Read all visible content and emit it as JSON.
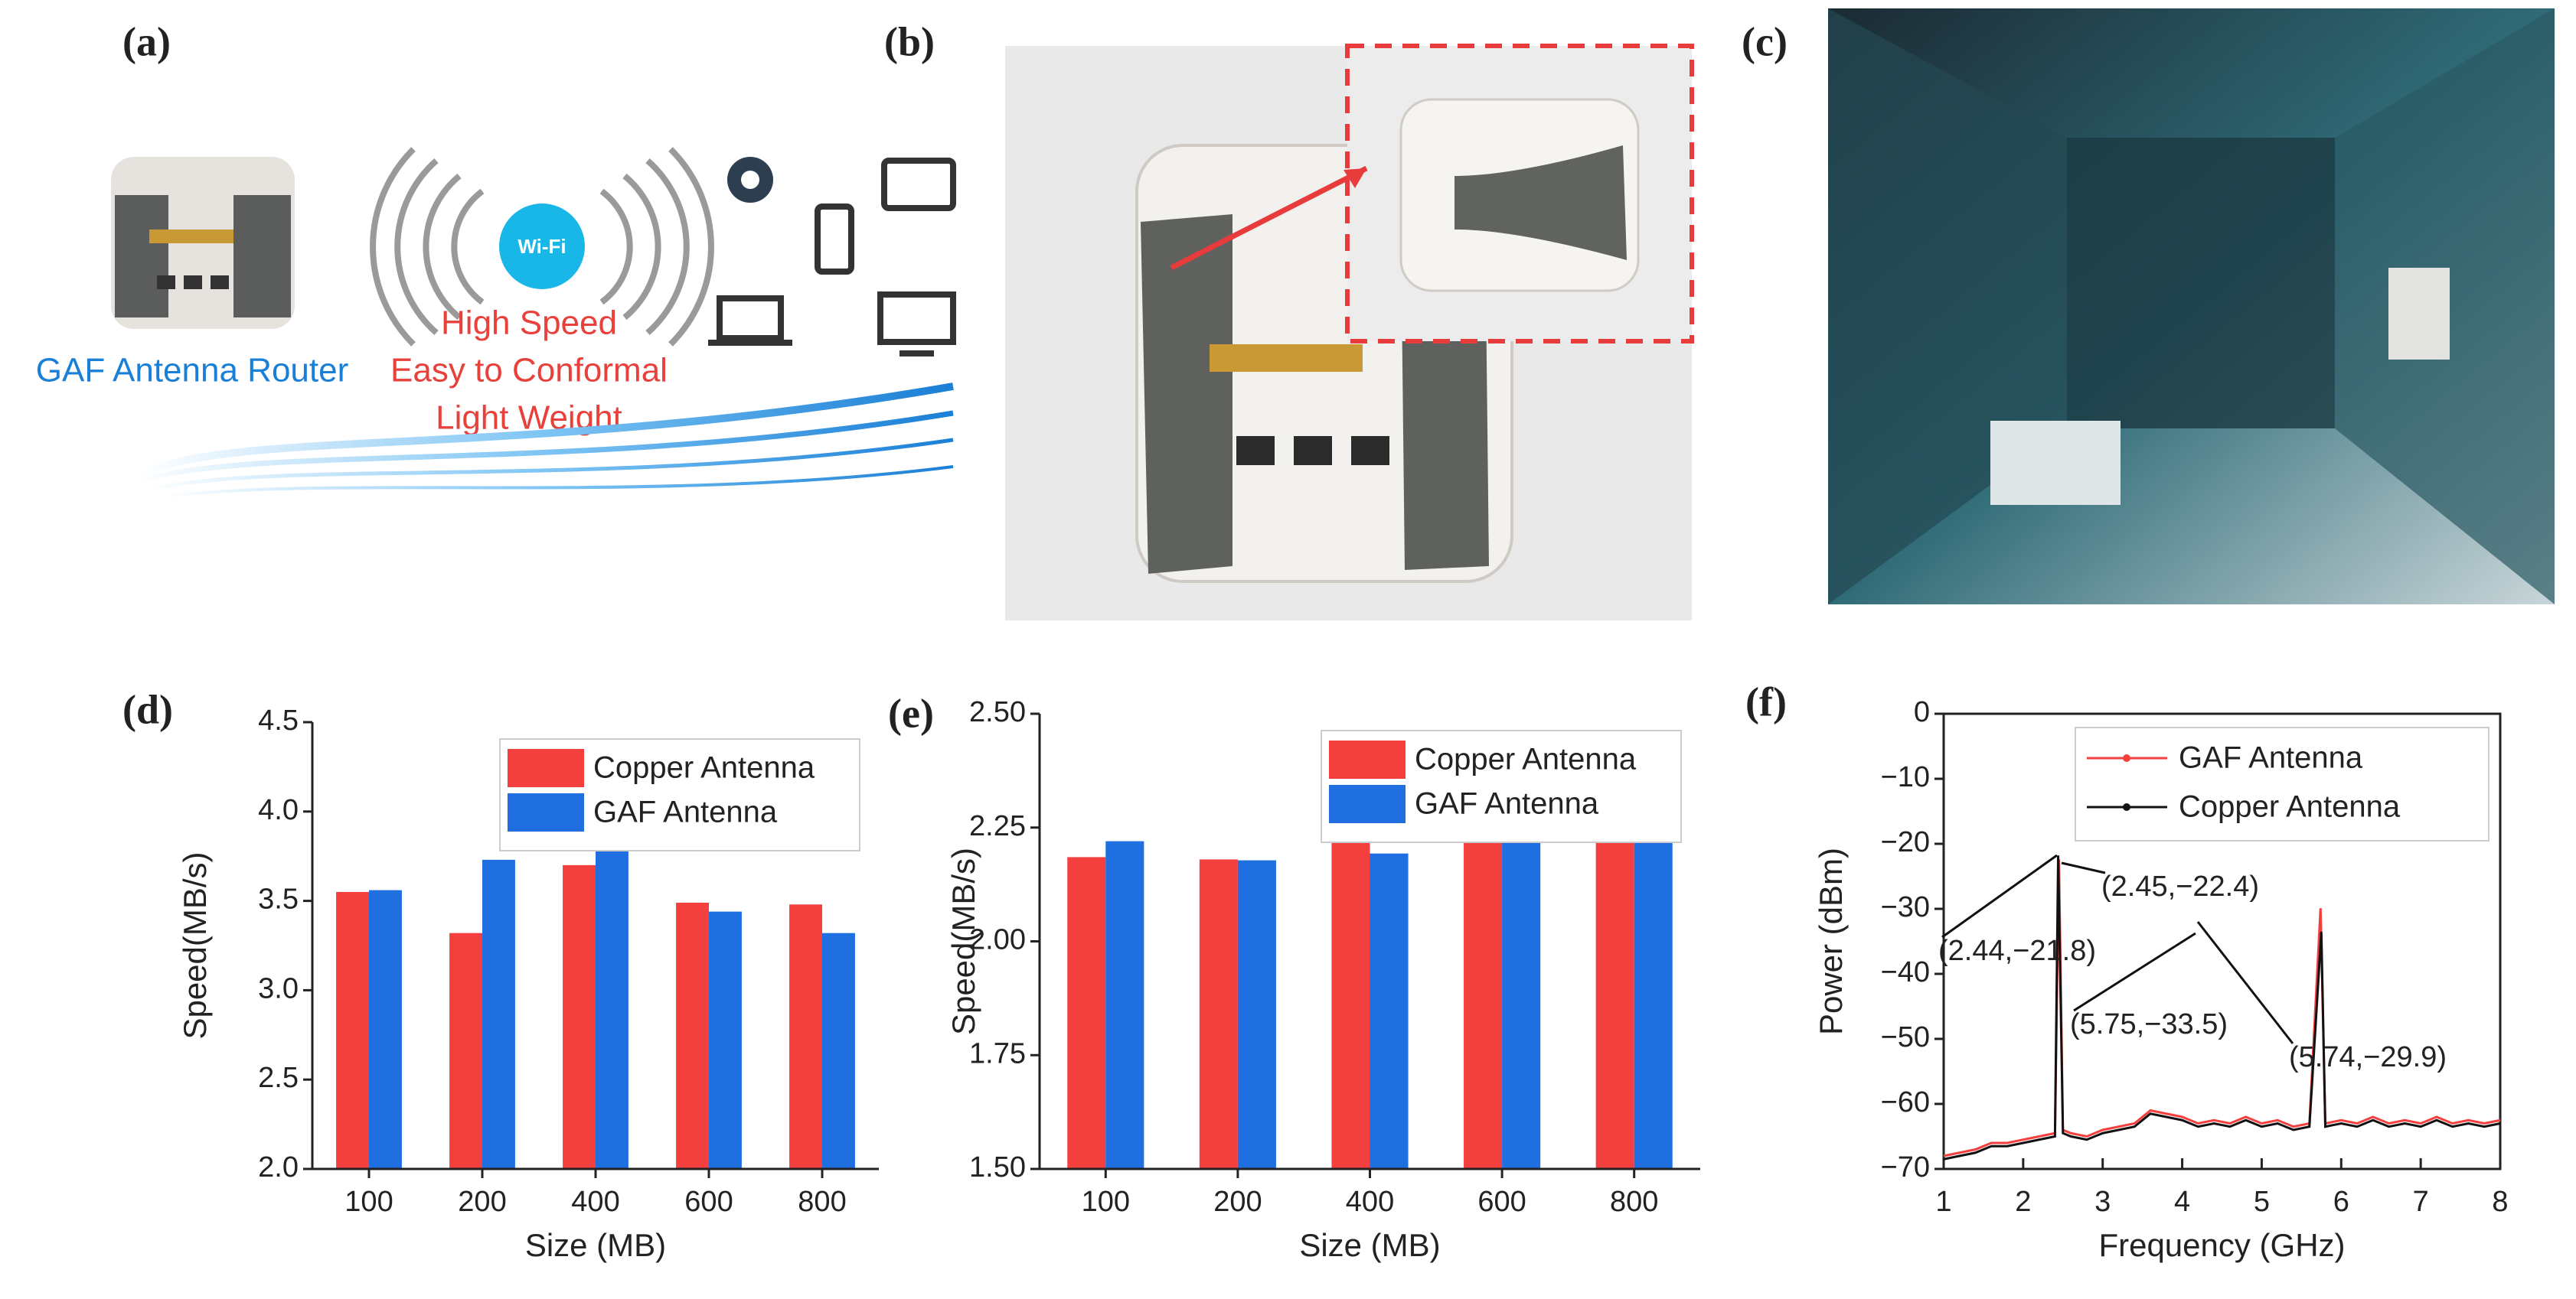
{
  "panels": {
    "a": {
      "label": "(a)",
      "router": "GAF Antenna Router",
      "wifi": "Wi-Fi",
      "features": [
        "High Speed",
        "Easy to Conformal",
        "Light Weight"
      ]
    },
    "b": {
      "label": "(b)"
    },
    "c": {
      "label": "(c)"
    },
    "d": {
      "label": "(d)"
    },
    "e": {
      "label": "(e)"
    },
    "f": {
      "label": "(f)"
    }
  },
  "chart_data": [
    {
      "type": "bar",
      "xlabel": "Size (MB)",
      "ylabel": "Speed(MB/s)",
      "categories": [
        "100",
        "200",
        "400",
        "600",
        "800"
      ],
      "series": [
        {
          "name": "Copper Antenna",
          "color": "#f43f3f",
          "values": [
            3.55,
            3.32,
            3.7,
            3.49,
            3.48
          ]
        },
        {
          "name": "GAF Antenna",
          "color": "#1f6fe0",
          "values": [
            3.56,
            3.73,
            3.79,
            3.44,
            3.32
          ]
        }
      ],
      "ylim": [
        2.0,
        4.5
      ],
      "yticks": [
        {
          "value": 2.0,
          "label": "2.0"
        },
        {
          "value": 2.5,
          "label": "2.5"
        },
        {
          "value": 3.0,
          "label": "3.0"
        },
        {
          "value": 3.5,
          "label": "3.5"
        },
        {
          "value": 4.0,
          "label": "4.0"
        },
        {
          "value": 4.5,
          "label": "4.5"
        }
      ],
      "legend": "upper right"
    },
    {
      "type": "bar",
      "xlabel": "Size (MB)",
      "ylabel": "Speed(MB/s)",
      "categories": [
        "100",
        "200",
        "400",
        "600",
        "800"
      ],
      "series": [
        {
          "name": "Copper Antenna",
          "color": "#f43f3f",
          "values": [
            2.185,
            2.18,
            2.225,
            2.24,
            2.245
          ]
        },
        {
          "name": "GAF Antenna",
          "color": "#1f6fe0",
          "values": [
            2.22,
            2.178,
            2.193,
            2.233,
            2.243
          ]
        }
      ],
      "ylim": [
        1.5,
        2.5
      ],
      "yticks": [
        {
          "value": 1.5,
          "label": "1.50"
        },
        {
          "value": 1.75,
          "label": "1.75"
        },
        {
          "value": 2.0,
          "label": "2.00"
        },
        {
          "value": 2.25,
          "label": "2.25"
        },
        {
          "value": 2.5,
          "label": "2.50"
        }
      ],
      "legend": "upper right"
    },
    {
      "type": "line",
      "xlabel": "Frequency (GHz)",
      "ylabel": "Power (dBm)",
      "series": [
        {
          "name": "GAF Antenna",
          "color": "#f43f3f",
          "x": [
            1.0,
            1.2,
            1.4,
            1.6,
            1.8,
            2.0,
            2.2,
            2.4,
            2.45,
            2.5,
            2.6,
            2.8,
            3.0,
            3.2,
            3.4,
            3.6,
            3.8,
            4.0,
            4.2,
            4.4,
            4.6,
            4.8,
            5.0,
            5.2,
            5.4,
            5.6,
            5.74,
            5.8,
            6.0,
            6.2,
            6.4,
            6.6,
            6.8,
            7.0,
            7.2,
            7.4,
            7.6,
            7.8,
            8.0
          ],
          "values": [
            -68,
            -67.5,
            -67,
            -66,
            -66,
            -65.5,
            -65,
            -64.5,
            -22.4,
            -64,
            -64.5,
            -65,
            -64,
            -63.5,
            -63,
            -61,
            -61.5,
            -62,
            -63,
            -62.5,
            -63,
            -62,
            -63,
            -62.5,
            -63.5,
            -63,
            -29.9,
            -63,
            -62.5,
            -63,
            -62,
            -63,
            -62.5,
            -63,
            -62,
            -63,
            -62.5,
            -63,
            -62.5
          ]
        },
        {
          "name": "Copper Antenna",
          "color": "#111111",
          "x": [
            1.0,
            1.2,
            1.4,
            1.6,
            1.8,
            2.0,
            2.2,
            2.4,
            2.44,
            2.5,
            2.6,
            2.8,
            3.0,
            3.2,
            3.4,
            3.6,
            3.8,
            4.0,
            4.2,
            4.4,
            4.6,
            4.8,
            5.0,
            5.2,
            5.4,
            5.6,
            5.75,
            5.8,
            6.0,
            6.2,
            6.4,
            6.6,
            6.8,
            7.0,
            7.2,
            7.4,
            7.6,
            7.8,
            8.0
          ],
          "values": [
            -68.5,
            -68,
            -67.5,
            -66.5,
            -66.5,
            -66,
            -65.5,
            -65,
            -21.8,
            -64.5,
            -65,
            -65.5,
            -64.5,
            -64,
            -63.5,
            -61.5,
            -62,
            -62.5,
            -63.5,
            -63,
            -63.5,
            -62.5,
            -63.5,
            -63,
            -64,
            -63.5,
            -33.5,
            -63.5,
            -63,
            -63.5,
            -62.5,
            -63.5,
            -63,
            -63.5,
            -62.5,
            -63.5,
            -63,
            -63.5,
            -63
          ]
        }
      ],
      "xlim": [
        1,
        8
      ],
      "xticks": [
        1,
        2,
        3,
        4,
        5,
        6,
        7,
        8
      ],
      "ylim": [
        -70,
        0
      ],
      "yticks": [
        {
          "value": -70,
          "label": "−70"
        },
        {
          "value": -60,
          "label": "−60"
        },
        {
          "value": -50,
          "label": "−50"
        },
        {
          "value": -40,
          "label": "−40"
        },
        {
          "value": -30,
          "label": "−30"
        },
        {
          "value": -20,
          "label": "−20"
        },
        {
          "value": -10,
          "label": "−10"
        },
        0
      ],
      "annotations": [
        "(2.45,−22.4)",
        "(2.44,−21.8)",
        "(5.75,−33.5)",
        "(5.74,−29.9)"
      ],
      "legend": "upper right"
    }
  ]
}
